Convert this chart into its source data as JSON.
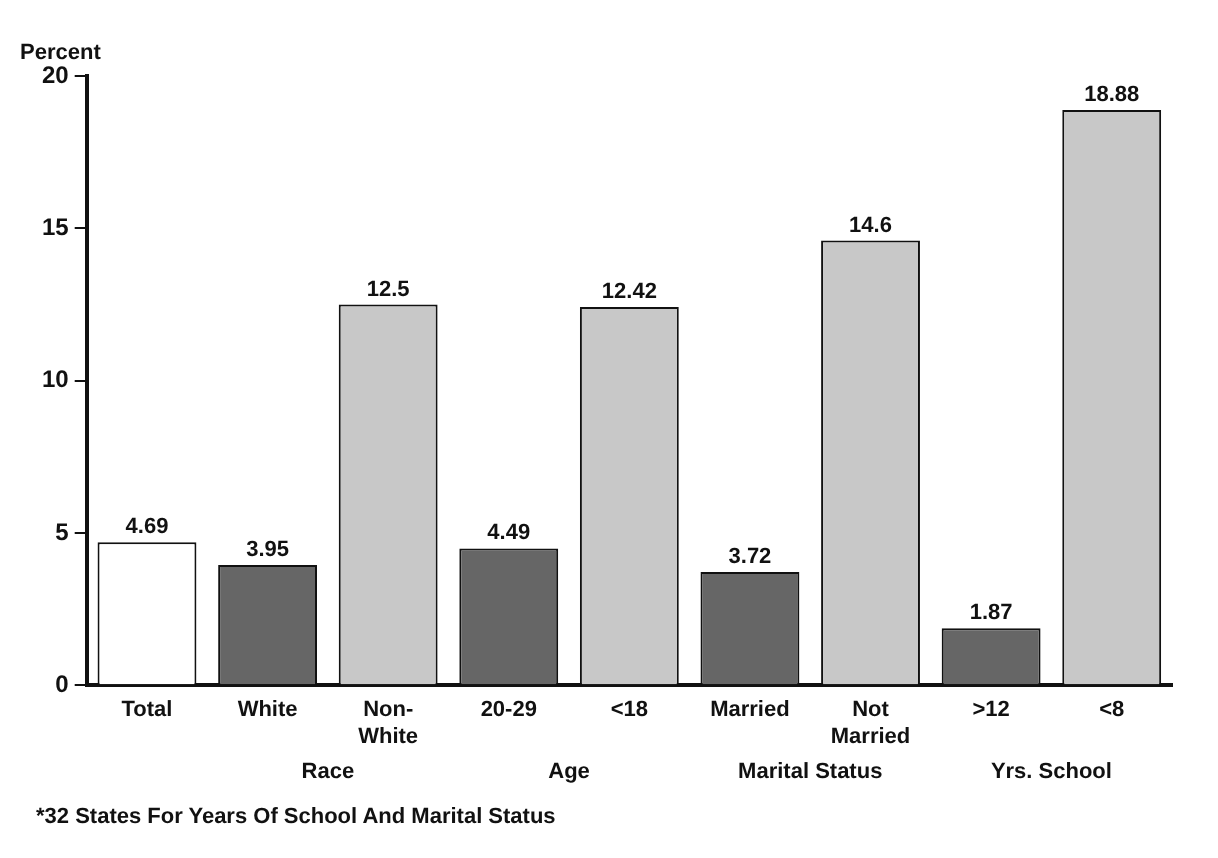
{
  "chart_data": {
    "type": "bar",
    "ylabel": "Percent",
    "categories": [
      "Total",
      "White",
      "Non-White",
      "20-29",
      "<18",
      "Married",
      "Not Married",
      ">12",
      "<8"
    ],
    "values": [
      4.69,
      3.95,
      12.5,
      4.49,
      12.42,
      3.72,
      14.6,
      1.87,
      18.88
    ],
    "colors": [
      "#ffffff",
      "#666666",
      "#c8c8c8",
      "#666666",
      "#c8c8c8",
      "#666666",
      "#c8c8c8",
      "#666666",
      "#c8c8c8"
    ],
    "ylim": [
      0,
      20
    ],
    "yticks": [
      0,
      5,
      10,
      15,
      20
    ],
    "grid": false,
    "legend": false,
    "data_labels": true,
    "annotations": [
      "Race",
      "Age",
      "Marital Status",
      "Yrs. School",
      "*32 States For Years Of School And Marital Status"
    ]
  }
}
